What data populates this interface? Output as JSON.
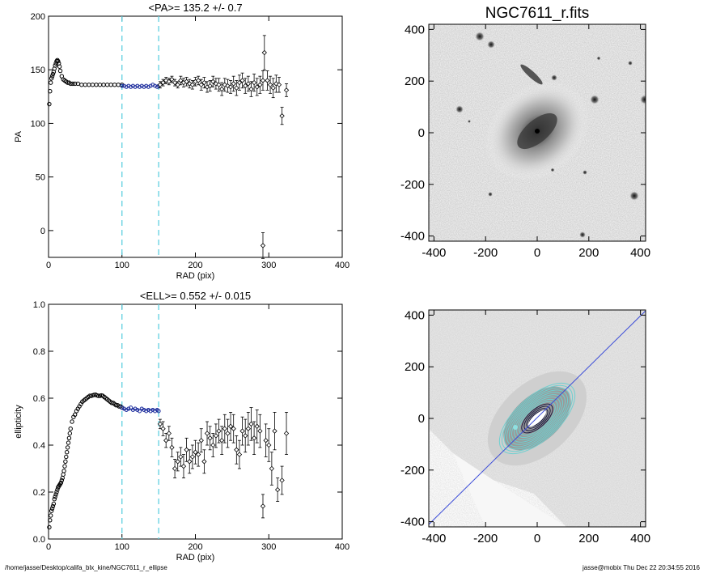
{
  "footer": {
    "left": "/home/jasse/Desktop/califa_blx_kine/NGC7611_r_ellipse",
    "right": "jasse@mobix  Thu Dec 22 20:34:55 2016"
  },
  "colors": {
    "fit_region": "#1f2f9e",
    "dashed": "#5fcfe0",
    "major_axis_line": "#3a4bd8",
    "isophote_cyan": "#6fd0d0",
    "points": "#000000"
  },
  "chart_data": [
    {
      "type": "scatter",
      "title": "<PA>= 135.2 +/-   0.7",
      "xlabel": "RAD (pix)",
      "ylabel": "PA",
      "xlim": [
        0,
        400
      ],
      "ylim": [
        -25,
        200
      ],
      "xticks": [
        "0",
        "100",
        "200",
        "300",
        "400"
      ],
      "yticks": [
        "0",
        "50",
        "100",
        "150",
        "200"
      ],
      "vlines": [
        100,
        150
      ],
      "series": [
        {
          "style": "dense",
          "x": [
            1,
            2,
            3,
            4,
            5,
            6,
            7,
            8,
            9,
            10,
            11,
            12,
            13,
            14,
            15,
            16,
            18,
            20,
            22,
            24,
            26,
            28,
            30,
            33,
            36,
            40,
            45,
            50,
            55,
            60,
            65,
            70,
            75,
            80,
            85,
            90,
            95,
            100
          ],
          "y": [
            118,
            130,
            138,
            142,
            144,
            146,
            148,
            151,
            154,
            156,
            158,
            159,
            158,
            156,
            153,
            149,
            144,
            141,
            140,
            139,
            138,
            138,
            137,
            137,
            137,
            137,
            136,
            136,
            136,
            136,
            136,
            136,
            136,
            136,
            136,
            136,
            136,
            136
          ]
        },
        {
          "style": "fit",
          "x": [
            100,
            103,
            106,
            109,
            112,
            115,
            118,
            121,
            124,
            127,
            130,
            133,
            136,
            139,
            142,
            145,
            148,
            150
          ],
          "y": [
            135,
            135,
            134,
            135,
            134,
            135,
            134,
            135,
            134,
            135,
            134,
            135,
            134,
            135,
            136,
            135,
            134,
            135
          ]
        },
        {
          "style": "errors",
          "x": [
            152,
            156,
            160,
            164,
            168,
            172,
            176,
            180,
            184,
            188,
            192,
            196,
            200,
            204,
            208,
            212,
            216,
            220,
            224,
            228,
            232,
            236,
            240,
            244,
            248,
            252,
            256,
            260,
            264,
            268,
            272,
            276,
            280,
            284,
            288,
            292,
            294,
            298,
            302,
            306,
            310,
            314,
            318,
            324
          ],
          "y": [
            136,
            138,
            140,
            139,
            141,
            138,
            136,
            140,
            138,
            139,
            137,
            136,
            139,
            140,
            136,
            138,
            134,
            135,
            139,
            137,
            136,
            132,
            136,
            135,
            134,
            137,
            133,
            138,
            140,
            135,
            137,
            132,
            138,
            134,
            136,
            140,
            166,
            140,
            136,
            133,
            137,
            136,
            107,
            131
          ],
          "err": [
            3,
            3,
            3,
            3,
            3,
            3,
            3,
            4,
            4,
            4,
            4,
            4,
            4,
            4,
            5,
            5,
            5,
            5,
            5,
            5,
            6,
            6,
            6,
            6,
            6,
            7,
            7,
            7,
            7,
            7,
            7,
            7,
            8,
            8,
            8,
            9,
            16,
            9,
            8,
            9,
            8,
            7,
            8,
            6
          ]
        },
        {
          "style": "errors",
          "x": [
            292
          ],
          "y": [
            -14
          ],
          "err": [
            12
          ]
        }
      ]
    },
    {
      "type": "scatter",
      "title": "<ELL>= 0.552 +/-  0.015",
      "xlabel": "RAD (pix)",
      "ylabel": "ellipticity",
      "xlim": [
        0,
        400
      ],
      "ylim": [
        0,
        1.0
      ],
      "xticks": [
        "0",
        "100",
        "200",
        "300",
        "400"
      ],
      "yticks": [
        "0.0",
        "0.2",
        "0.4",
        "0.6",
        "0.8",
        "1.0"
      ],
      "vlines": [
        100,
        150
      ],
      "hline": {
        "x": [
          100,
          150
        ],
        "y": 0.552
      },
      "series": [
        {
          "style": "dense",
          "x": [
            1,
            2,
            3,
            4,
            5,
            6,
            7,
            8,
            9,
            10,
            11,
            12,
            13,
            14,
            15,
            16,
            17,
            18,
            19,
            20,
            21,
            22,
            23,
            24,
            25,
            26,
            27,
            28,
            29,
            30,
            32,
            34,
            36,
            38,
            40,
            42,
            44,
            46,
            48,
            50,
            52,
            54,
            56,
            58,
            60,
            62,
            64,
            66,
            68,
            70,
            72,
            74,
            76,
            78,
            80,
            82,
            84,
            86,
            88,
            90,
            92,
            94,
            96,
            98,
            100
          ],
          "y": [
            0.05,
            0.08,
            0.1,
            0.12,
            0.13,
            0.14,
            0.15,
            0.17,
            0.18,
            0.19,
            0.2,
            0.21,
            0.22,
            0.225,
            0.23,
            0.235,
            0.24,
            0.25,
            0.26,
            0.275,
            0.29,
            0.31,
            0.33,
            0.35,
            0.37,
            0.39,
            0.41,
            0.43,
            0.45,
            0.47,
            0.5,
            0.52,
            0.53,
            0.545,
            0.555,
            0.565,
            0.575,
            0.585,
            0.59,
            0.595,
            0.6,
            0.605,
            0.61,
            0.61,
            0.612,
            0.614,
            0.615,
            0.612,
            0.61,
            0.61,
            0.612,
            0.61,
            0.605,
            0.6,
            0.595,
            0.59,
            0.585,
            0.58,
            0.58,
            0.575,
            0.57,
            0.57,
            0.565,
            0.565,
            0.56
          ]
        },
        {
          "style": "fit",
          "x": [
            100,
            103,
            106,
            109,
            112,
            115,
            118,
            121,
            124,
            127,
            130,
            133,
            136,
            139,
            142,
            145,
            148,
            150
          ],
          "y": [
            0.56,
            0.555,
            0.55,
            0.555,
            0.56,
            0.55,
            0.555,
            0.55,
            0.545,
            0.555,
            0.55,
            0.545,
            0.55,
            0.545,
            0.55,
            0.545,
            0.55,
            0.545
          ]
        },
        {
          "style": "errors",
          "x": [
            152,
            156,
            160,
            164,
            168,
            172,
            176,
            180,
            184,
            188,
            192,
            196,
            200,
            204,
            208,
            212,
            216,
            220,
            224,
            228,
            232,
            236,
            240,
            244,
            248,
            252,
            256,
            260,
            264,
            268,
            272,
            276,
            280,
            284,
            288,
            292,
            296,
            300,
            304,
            308,
            312,
            318,
            324
          ],
          "y": [
            0.49,
            0.47,
            0.42,
            0.45,
            0.39,
            0.3,
            0.33,
            0.35,
            0.31,
            0.38,
            0.33,
            0.35,
            0.37,
            0.36,
            0.42,
            0.33,
            0.45,
            0.43,
            0.4,
            0.44,
            0.46,
            0.42,
            0.47,
            0.45,
            0.48,
            0.47,
            0.38,
            0.36,
            0.46,
            0.44,
            0.47,
            0.49,
            0.43,
            0.48,
            0.46,
            0.14,
            0.42,
            0.4,
            0.3,
            0.46,
            0.21,
            0.25,
            0.45
          ],
          "err": [
            0.02,
            0.03,
            0.03,
            0.03,
            0.04,
            0.04,
            0.04,
            0.04,
            0.05,
            0.05,
            0.05,
            0.05,
            0.05,
            0.05,
            0.05,
            0.05,
            0.05,
            0.05,
            0.05,
            0.05,
            0.05,
            0.06,
            0.06,
            0.06,
            0.06,
            0.06,
            0.06,
            0.06,
            0.06,
            0.07,
            0.07,
            0.07,
            0.07,
            0.07,
            0.07,
            0.05,
            0.07,
            0.07,
            0.07,
            0.08,
            0.05,
            0.06,
            0.09
          ]
        }
      ]
    },
    {
      "type": "image",
      "title": "NGC7611_r.fits",
      "xlim": [
        -420,
        420
      ],
      "ylim": [
        -420,
        420
      ],
      "xticks": [
        "-400",
        "-200",
        "0",
        "200",
        "400"
      ],
      "yticks": [
        "-400",
        "-200",
        "0",
        "200",
        "400"
      ]
    },
    {
      "type": "image",
      "title": "",
      "xlim": [
        -420,
        420
      ],
      "ylim": [
        -420,
        420
      ],
      "xticks": [
        "-400",
        "-200",
        "0",
        "200",
        "400"
      ],
      "yticks": [
        "-400",
        "-200",
        "0",
        "200",
        "400"
      ]
    }
  ]
}
